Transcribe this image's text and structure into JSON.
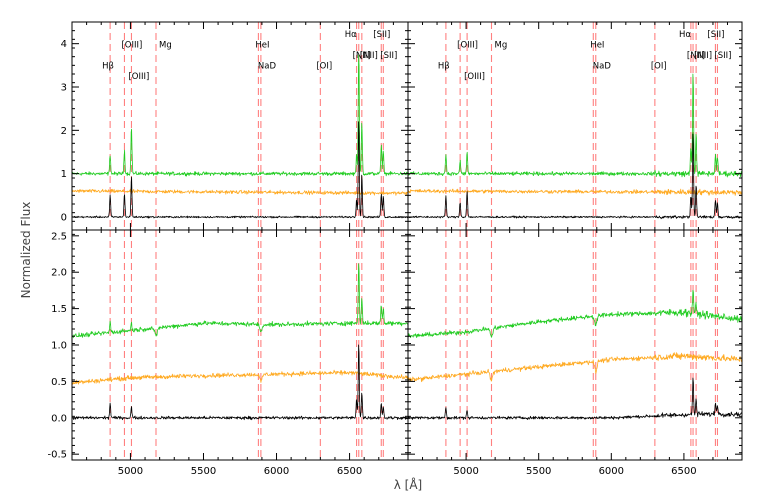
{
  "chart_data": [
    {
      "type": "line",
      "panel": "top-left",
      "xlim": [
        4600,
        6900
      ],
      "ylim": [
        -0.3,
        4.5
      ],
      "yticks": [
        0,
        1,
        2,
        3,
        4
      ],
      "colors": {
        "green": "#22cc22",
        "orange": "#ffaa22",
        "black": "#000000"
      },
      "series": [
        {
          "color": "green",
          "continuum": [
            [
              4600,
              1.0
            ],
            [
              6900,
              1.0
            ]
          ],
          "lines": {
            "4861": 0.45,
            "4959": 0.55,
            "5007": 1.1,
            "6548": 0.45,
            "6563": 2.9,
            "6584": 1.2,
            "6717": 0.65,
            "6731": 0.55
          }
        },
        {
          "color": "orange",
          "continuum": [
            [
              4600,
              0.6
            ],
            [
              6900,
              0.55
            ]
          ],
          "lines": {}
        },
        {
          "color": "black",
          "continuum": [
            [
              4600,
              0.0
            ],
            [
              6900,
              0.0
            ]
          ],
          "lines": {
            "4861": 0.5,
            "4959": 0.55,
            "5007": 0.95,
            "6548": 0.4,
            "6563": 2.3,
            "6584": 1.0,
            "6717": 0.55,
            "6731": 0.5
          }
        }
      ]
    },
    {
      "type": "line",
      "panel": "top-right",
      "xlim": [
        4600,
        6900
      ],
      "ylim": [
        -0.3,
        4.5
      ],
      "yticks": [
        0,
        1,
        2,
        3,
        4
      ],
      "series": [
        {
          "color": "green",
          "continuum": [
            [
              4600,
              1.0
            ],
            [
              6900,
              1.0
            ]
          ],
          "lines": {
            "4861": 0.45,
            "4959": 0.3,
            "5007": 0.5,
            "6548": 0.6,
            "6563": 2.4,
            "6584": 0.9,
            "6717": 0.45,
            "6731": 0.4
          }
        },
        {
          "color": "orange",
          "continuum": [
            [
              4600,
              0.6
            ],
            [
              6900,
              0.57
            ]
          ],
          "lines": {}
        },
        {
          "color": "black",
          "continuum": [
            [
              4600,
              0.0
            ],
            [
              6900,
              0.0
            ]
          ],
          "lines": {
            "4861": 0.5,
            "4959": 0.35,
            "5007": 0.6,
            "6548": 0.5,
            "6563": 2.0,
            "6584": 0.75,
            "6717": 0.4,
            "6731": 0.35
          }
        }
      ]
    },
    {
      "type": "line",
      "panel": "bottom-left",
      "xlim": [
        4600,
        6900
      ],
      "ylim": [
        -0.58,
        2.58
      ],
      "yticks": [
        -0.5,
        0.0,
        0.5,
        1.0,
        1.5,
        2.0,
        2.5
      ],
      "xticks": [
        5000,
        5500,
        6000,
        6500
      ],
      "series": [
        {
          "color": "green",
          "continuum": [
            [
              4600,
              1.12
            ],
            [
              5000,
              1.2
            ],
            [
              5500,
              1.3
            ],
            [
              6000,
              1.28
            ],
            [
              6500,
              1.3
            ],
            [
              6900,
              1.3
            ]
          ],
          "lines": {
            "4861": 0.15,
            "5007": 0.1,
            "6563": 0.85,
            "6584": 0.35,
            "6717": 0.25,
            "6731": 0.2
          },
          "absorb": {
            "5175": 0.12,
            "5893": 0.1
          }
        },
        {
          "color": "orange",
          "continuum": [
            [
              4600,
              0.48
            ],
            [
              5000,
              0.55
            ],
            [
              5500,
              0.58
            ],
            [
              6000,
              0.6
            ],
            [
              6500,
              0.62
            ],
            [
              6900,
              0.55
            ]
          ],
          "lines": {},
          "absorb": {
            "5893": 0.1
          }
        },
        {
          "color": "black",
          "continuum": [
            [
              4600,
              0.0
            ],
            [
              6900,
              0.0
            ]
          ],
          "lines": {
            "4861": 0.2,
            "5007": 0.15,
            "6548": 0.25,
            "6563": 1.05,
            "6584": 0.35,
            "6717": 0.2,
            "6731": 0.15
          }
        }
      ]
    },
    {
      "type": "line",
      "panel": "bottom-right",
      "xlim": [
        4600,
        6900
      ],
      "ylim": [
        -0.58,
        2.58
      ],
      "yticks": [
        -0.5,
        0.0,
        0.5,
        1.0,
        1.5,
        2.0,
        2.5
      ],
      "xticks": [
        5000,
        5500,
        6000,
        6500
      ],
      "series": [
        {
          "color": "green",
          "continuum": [
            [
              4600,
              1.12
            ],
            [
              5000,
              1.18
            ],
            [
              5500,
              1.32
            ],
            [
              6000,
              1.42
            ],
            [
              6500,
              1.45
            ],
            [
              6900,
              1.35
            ]
          ],
          "lines": {
            "6563": 0.35,
            "6584": 0.12
          },
          "absorb": {
            "5175": 0.12,
            "5893": 0.12
          }
        },
        {
          "color": "orange",
          "continuum": [
            [
              4600,
              0.52
            ],
            [
              5000,
              0.6
            ],
            [
              5500,
              0.7
            ],
            [
              6000,
              0.8
            ],
            [
              6500,
              0.85
            ],
            [
              6900,
              0.8
            ]
          ],
          "lines": {},
          "absorb": {
            "5175": 0.12,
            "5893": 0.15
          }
        },
        {
          "color": "black",
          "continuum": [
            [
              4600,
              0.0
            ],
            [
              6000,
              0.0
            ],
            [
              6600,
              0.05
            ],
            [
              6900,
              0.05
            ]
          ],
          "lines": {
            "4861": 0.15,
            "5007": 0.1,
            "6563": 0.5,
            "6584": 0.2,
            "6717": 0.15,
            "6731": 0.15
          }
        }
      ]
    }
  ],
  "reference_lines": [
    {
      "wavelength": 4861,
      "label": "Hβ"
    },
    {
      "wavelength": 4959,
      "label": "[OIII]"
    },
    {
      "wavelength": 5007,
      "label": "[OIII]"
    },
    {
      "wavelength": 5175,
      "label": "Mg"
    },
    {
      "wavelength": 5876,
      "label": "HeI"
    },
    {
      "wavelength": 5893,
      "label": "NaD"
    },
    {
      "wavelength": 6300,
      "label": "[OI]"
    },
    {
      "wavelength": 6548,
      "label": "[NII]"
    },
    {
      "wavelength": 6563,
      "label": "Hα"
    },
    {
      "wavelength": 6584,
      "label": "[NII]"
    },
    {
      "wavelength": 6717,
      "label": "[SII]"
    },
    {
      "wavelength": 6731,
      "label": "[SII]"
    }
  ],
  "xlabel": "λ [Å]",
  "ylabel": "Normalized Flux"
}
